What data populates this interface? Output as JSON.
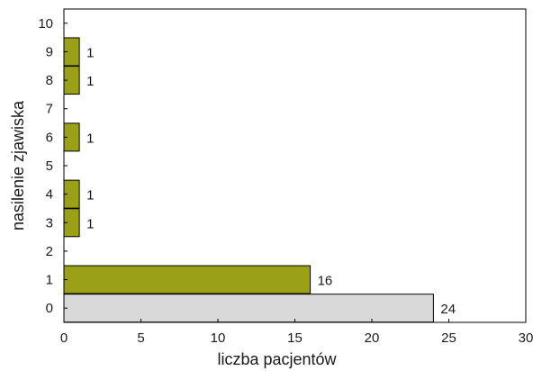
{
  "chart_data": {
    "type": "bar",
    "orientation": "horizontal",
    "xlabel": "liczba pacjentów",
    "ylabel": "nasilenie zjawiska",
    "xlim": [
      0,
      30
    ],
    "x_ticks": [
      0,
      5,
      10,
      15,
      20,
      25,
      30
    ],
    "categories": [
      "0",
      "1",
      "2",
      "3",
      "4",
      "5",
      "6",
      "7",
      "8",
      "9",
      "10"
    ],
    "values": [
      24,
      16,
      0,
      1,
      1,
      0,
      1,
      0,
      1,
      1,
      0
    ],
    "data_labels": [
      "24",
      "16",
      "",
      "1",
      "1",
      "",
      "1",
      "",
      "1",
      "1",
      ""
    ],
    "bar_colors": [
      "#d9d9d9",
      "#9ba117",
      "#9ba117",
      "#9ba117",
      "#9ba117",
      "#9ba117",
      "#9ba117",
      "#9ba117",
      "#9ba117",
      "#9ba117",
      "#9ba117"
    ],
    "grid": false,
    "legend": "none"
  }
}
